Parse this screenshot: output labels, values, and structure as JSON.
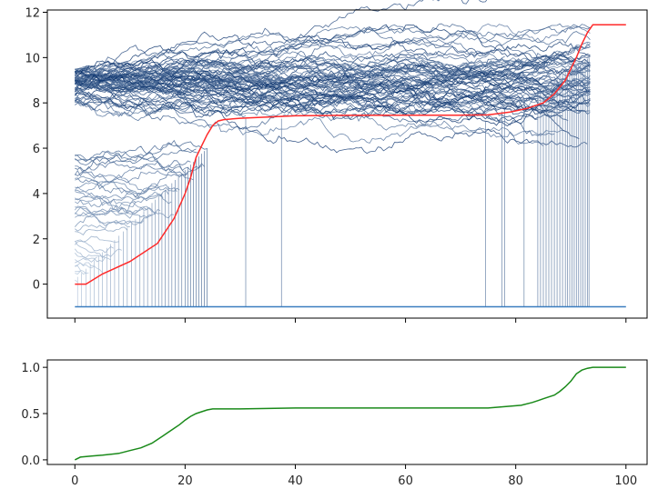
{
  "chart_data": [
    {
      "type": "line",
      "title": "",
      "xlabel": "",
      "ylabel": "",
      "xlim": [
        -5,
        104
      ],
      "ylim": [
        -1.5,
        12.1
      ],
      "x_ticks": [
        0,
        20,
        40,
        60,
        80,
        100
      ],
      "x_tick_labels_shown": false,
      "y_ticks": [
        0,
        2,
        4,
        6,
        8,
        10,
        12
      ],
      "y_tick_labels": [
        "0",
        "2",
        "4",
        "6",
        "8",
        "10",
        "12"
      ],
      "grid": false,
      "legend": "none",
      "colormap": "Blues",
      "colors": {
        "red_line": "#ff2a2a",
        "floor_line": "#3a7dbf",
        "frame": "#000000"
      },
      "series": [
        {
          "role": "simulated-paths",
          "count_approx": 100,
          "description_values": {
            "upper_start_range": [
              8.7,
              9.5
            ],
            "upper_end_range": [
              7.6,
              11.5
            ],
            "lower_start_range": [
              0.0,
              5.8
            ],
            "absorbed_value": -1
          }
        },
        {
          "role": "absorption-drop-lines",
          "x": [
            0.5,
            1.2,
            2,
            2.8,
            3.5,
            4.3,
            5,
            5.8,
            6.5,
            7.2,
            8,
            8.8,
            9.5,
            10.3,
            11,
            11.8,
            12.5,
            13.2,
            14,
            14.6,
            15.2,
            15.8,
            16.4,
            17,
            17.6,
            18.2,
            18.8,
            19.4,
            20,
            20.5,
            21,
            21.5,
            22,
            22.5,
            23,
            23.5,
            24,
            31,
            37.5,
            74.5,
            77.5,
            78,
            81.5,
            84,
            84.5,
            85,
            85.5,
            86,
            86.5,
            87,
            87.5,
            88,
            88.5,
            89,
            89.4,
            89.8,
            90.2,
            90.6,
            91,
            91.4,
            91.8,
            92.2,
            92.6,
            93,
            93.3
          ]
        },
        {
          "role": "cumulative-mass",
          "color": "#ff2a2a",
          "x": [
            0,
            2,
            5,
            10,
            15,
            18,
            20,
            21,
            22,
            23,
            24,
            25,
            26,
            27,
            28,
            30,
            35,
            40,
            50,
            60,
            70,
            75,
            79,
            82,
            85,
            87,
            89,
            90,
            91,
            92,
            93,
            94,
            95,
            100
          ],
          "y": [
            0,
            0,
            0.45,
            1.0,
            1.8,
            2.9,
            4.0,
            4.7,
            5.6,
            6.1,
            6.6,
            7.0,
            7.2,
            7.26,
            7.28,
            7.32,
            7.38,
            7.43,
            7.45,
            7.46,
            7.46,
            7.47,
            7.6,
            7.75,
            8.0,
            8.4,
            9.0,
            9.5,
            10.0,
            10.6,
            11.1,
            11.45,
            11.45,
            11.45
          ]
        }
      ]
    },
    {
      "type": "line",
      "title": "",
      "xlabel": "",
      "ylabel": "",
      "xlim": [
        -5,
        104
      ],
      "ylim": [
        -0.05,
        1.08
      ],
      "x_ticks": [
        0,
        20,
        40,
        60,
        80,
        100
      ],
      "x_tick_labels": [
        "0",
        "20",
        "40",
        "60",
        "80",
        "100"
      ],
      "y_ticks": [
        0.0,
        0.5,
        1.0
      ],
      "y_tick_labels": [
        "0.0",
        "0.5",
        "1.0"
      ],
      "grid": false,
      "legend": "none",
      "series": [
        {
          "role": "fraction-absorbed",
          "color": "#1a8a1a",
          "x": [
            0,
            1,
            3,
            5,
            8,
            10,
            12,
            14,
            16,
            17,
            18,
            19,
            20,
            21,
            22,
            23,
            24,
            25,
            30,
            35,
            40,
            50,
            60,
            70,
            75,
            77,
            79,
            81,
            83,
            84,
            85,
            86,
            87,
            88,
            89,
            90,
            91,
            92,
            93,
            94,
            100
          ],
          "y": [
            0,
            0.03,
            0.04,
            0.05,
            0.07,
            0.1,
            0.13,
            0.18,
            0.26,
            0.3,
            0.34,
            0.38,
            0.43,
            0.47,
            0.5,
            0.52,
            0.54,
            0.55,
            0.55,
            0.555,
            0.56,
            0.56,
            0.56,
            0.56,
            0.56,
            0.57,
            0.58,
            0.59,
            0.62,
            0.64,
            0.66,
            0.68,
            0.7,
            0.74,
            0.79,
            0.85,
            0.93,
            0.97,
            0.99,
            1.0,
            1.0
          ]
        }
      ]
    }
  ]
}
